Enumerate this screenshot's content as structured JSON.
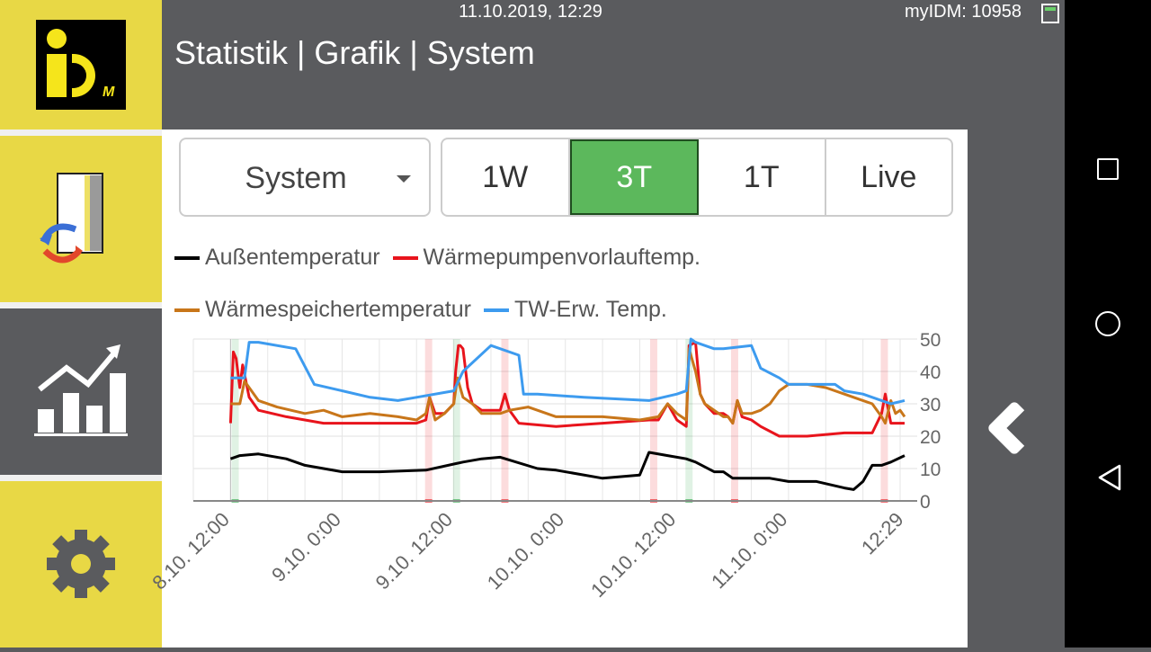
{
  "header": {
    "datetime": "11.10.2019, 12:29",
    "device": "myIDM: 10958",
    "title": "Statistik | Grafik | System"
  },
  "sidebar": {
    "logo_text": "iDM",
    "items": [
      {
        "name": "transfer-icon"
      },
      {
        "name": "statistics-icon"
      },
      {
        "name": "settings-icon"
      }
    ]
  },
  "controls": {
    "dropdown_value": "System",
    "ranges": [
      "1W",
      "3T",
      "1T",
      "Live"
    ],
    "active_range": "3T"
  },
  "colors": {
    "accent_yellow": "#e8d845",
    "panel_gray": "#5a5b5e",
    "active_green": "#5cb85c",
    "aussen": "#000000",
    "vorlauf": "#e8141c",
    "speicher": "#c8761a",
    "tw": "#3d9bef"
  },
  "chart_data": {
    "type": "line",
    "ylim": [
      0,
      50
    ],
    "yticks": [
      "50",
      "40",
      "30",
      "20",
      "10",
      "0"
    ],
    "x_ticks": [
      "8.10. 12:00",
      "9.10. 0:00",
      "9.10. 12:00",
      "10.10. 0:00",
      "10.10. 12:00",
      "11.10. 0:00",
      "12:29"
    ],
    "x_tick_hours": [
      0,
      12,
      24,
      36,
      48,
      60,
      72.48
    ],
    "xlim": [
      -4,
      72.48
    ],
    "legend": [
      "Außentemperatur",
      "Wärmepumpenvorlauftemp.",
      "Wärmespeichertemperatur",
      "TW-Erw. Temp."
    ],
    "series": [
      {
        "name": "Außentemperatur",
        "color": "#000000",
        "x": [
          0,
          1,
          3,
          6,
          8,
          12,
          16,
          21,
          25,
          27,
          29,
          33,
          35,
          40,
          44,
          45,
          47,
          49,
          50,
          52,
          53,
          54,
          56,
          58,
          60,
          63,
          66,
          67,
          68,
          69,
          70,
          71,
          72.48
        ],
        "y": [
          13,
          14,
          14.5,
          13,
          11,
          9,
          9,
          9.5,
          12,
          13,
          13.5,
          10,
          9.5,
          7,
          8,
          15,
          14,
          13,
          12,
          9,
          9,
          7,
          7,
          7,
          6,
          6,
          4,
          3.5,
          6,
          11,
          11,
          12,
          14
        ]
      },
      {
        "name": "Wärmepumpenvorlauftemp.",
        "color": "#e8141c",
        "x": [
          0,
          0.3,
          0.6,
          1,
          1.3,
          2,
          3,
          6,
          10,
          15,
          20,
          21,
          21.4,
          22,
          23,
          24,
          24.2,
          24.5,
          24.7,
          25,
          25.5,
          26,
          27,
          28,
          29,
          29.5,
          30,
          31,
          35,
          40,
          45,
          46,
          47,
          48,
          49,
          49.3,
          50,
          50.5,
          51,
          52,
          53,
          53.5,
          54,
          54.5,
          55,
          56,
          57,
          59,
          62,
          66,
          69,
          70,
          70.4,
          71,
          72.48
        ],
        "y": [
          24,
          46,
          44,
          35,
          42,
          32,
          28,
          26,
          24,
          24,
          24,
          25,
          32,
          27,
          27,
          30,
          40,
          48,
          48,
          47,
          35,
          30,
          28,
          28,
          28,
          33,
          28,
          24,
          23,
          24,
          25,
          25,
          30,
          25,
          23,
          48,
          49,
          33,
          30,
          27,
          27,
          26,
          24,
          31,
          26,
          25,
          23,
          20,
          20,
          21,
          21,
          27,
          33,
          24,
          24
        ]
      },
      {
        "name": "Wärmespeichertemperatur",
        "color": "#c8761a",
        "x": [
          0,
          1,
          1.5,
          2,
          3,
          5,
          8,
          10,
          12,
          15,
          18,
          20,
          21,
          21.4,
          22,
          23,
          24,
          24.4,
          25,
          26,
          27,
          29,
          30,
          32,
          35,
          37,
          40,
          44,
          46,
          47,
          48,
          49,
          49.3,
          50,
          50.5,
          51,
          52,
          53,
          53.5,
          54,
          54.5,
          55,
          56,
          57,
          58,
          59,
          60,
          61,
          62,
          64,
          66,
          67,
          68,
          69,
          69.5,
          70,
          70.4,
          71,
          71.5,
          72,
          72.48
        ],
        "y": [
          30,
          30,
          37,
          35,
          31,
          29,
          27,
          28,
          26,
          27,
          26,
          25,
          27,
          32,
          25,
          27,
          30,
          38,
          32,
          30,
          27,
          27,
          28,
          29,
          26,
          26,
          26,
          25,
          26,
          30,
          27,
          25,
          47,
          40,
          33,
          30,
          28,
          26,
          26,
          24,
          31,
          27,
          27,
          28,
          30,
          34,
          36,
          36,
          36,
          35,
          33,
          32,
          31,
          30,
          28,
          26,
          24,
          31,
          27,
          28,
          26
        ]
      },
      {
        "name": "TW-Erw. Temp.",
        "color": "#3d9bef",
        "x": [
          0,
          1.5,
          2,
          3,
          7,
          9,
          12,
          15,
          18,
          20,
          24,
          25,
          28,
          31,
          31.5,
          33,
          38,
          45,
          48,
          49,
          49.5,
          50,
          52,
          53,
          56,
          57,
          59,
          60,
          62,
          65,
          66,
          68,
          70,
          71,
          72.48
        ],
        "y": [
          38,
          38,
          49,
          49,
          47,
          36,
          34,
          32,
          31,
          32,
          34,
          40,
          48,
          45,
          33,
          33,
          32,
          31,
          33,
          34,
          50,
          49,
          47,
          47,
          48,
          41,
          38,
          36,
          36,
          36,
          34,
          33,
          31,
          30,
          31
        ]
      }
    ],
    "band_groups": [
      {
        "color": "#2ea84a",
        "x": [
          0.5,
          24.3,
          49.3
        ]
      },
      {
        "color": "#e8141c",
        "x": [
          21.3,
          29.5,
          45.5,
          54.2,
          70.3
        ]
      }
    ]
  }
}
